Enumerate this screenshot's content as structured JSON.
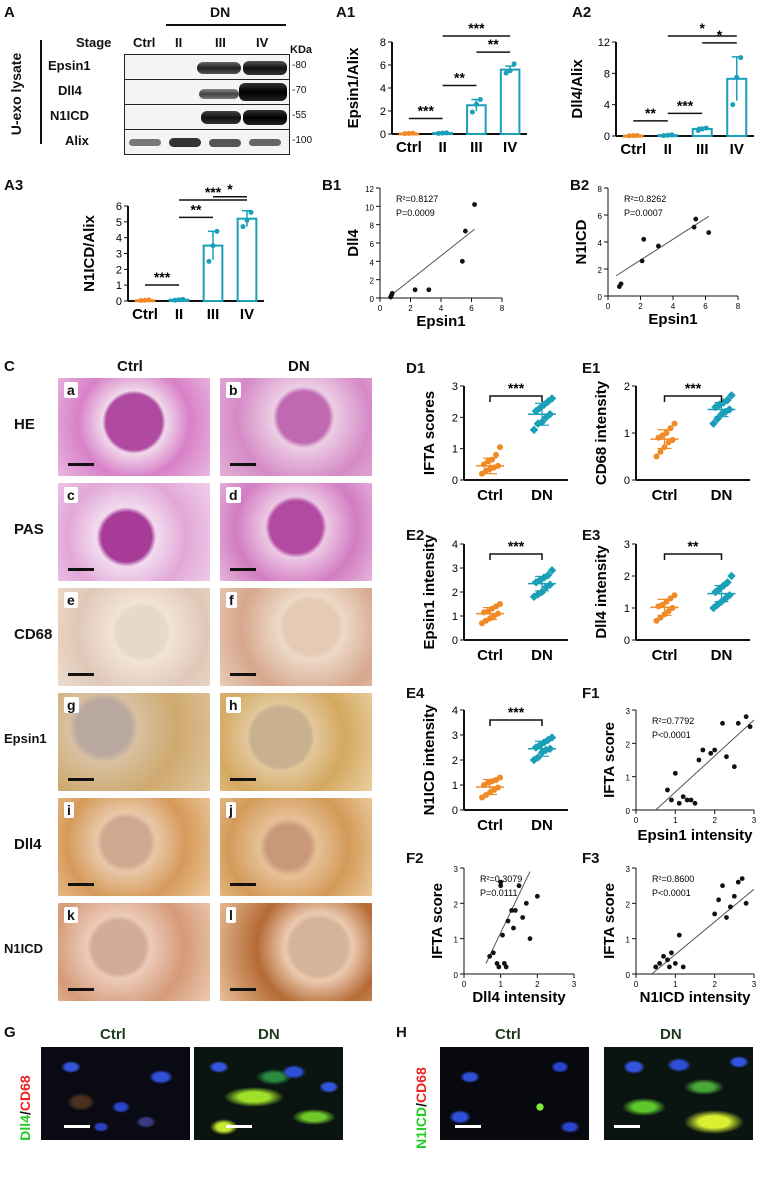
{
  "panels": {
    "A": "A",
    "A1": "A1",
    "A2": "A2",
    "A3": "A3",
    "B1": "B1",
    "B2": "B2",
    "C": "C",
    "D1": "D1",
    "E1": "E1",
    "E2": "E2",
    "E3": "E3",
    "E4": "E4",
    "F1": "F1",
    "F2": "F2",
    "F3": "F3",
    "G": "G",
    "H": "H"
  },
  "western_blot": {
    "side_label": "U-exo lysate",
    "dn_header": "DN",
    "stage_label": "Stage",
    "lanes": [
      "Ctrl",
      "II",
      "III",
      "IV"
    ],
    "kda_header": "KDa",
    "rows": [
      {
        "name": "Epsin1",
        "kda": "-80"
      },
      {
        "name": "Dll4",
        "kda": "-70"
      },
      {
        "name": "N1ICD",
        "kda": "-55"
      },
      {
        "name": "Alix",
        "kda": "-100"
      }
    ]
  },
  "ihc": {
    "col_headers": [
      "Ctrl",
      "DN"
    ],
    "rows": [
      {
        "label": "HE",
        "letters": [
          "a",
          "b"
        ]
      },
      {
        "label": "PAS",
        "letters": [
          "c",
          "d"
        ]
      },
      {
        "label": "CD68",
        "letters": [
          "e",
          "f"
        ]
      },
      {
        "label": "Epsin1",
        "letters": [
          "g",
          "h"
        ]
      },
      {
        "label": "Dll4",
        "letters": [
          "i",
          "j"
        ]
      },
      {
        "label": "N1ICD",
        "letters": [
          "k",
          "l"
        ]
      }
    ]
  },
  "immunofluorescence": {
    "G": {
      "col_headers": [
        "Ctrl",
        "DN"
      ],
      "stain_green": "Dll4",
      "stain_red": "CD68",
      "sep": "/"
    },
    "H": {
      "col_headers": [
        "Ctrl",
        "DN"
      ],
      "stain_green": "N1ICD",
      "stain_red": "CD68",
      "sep": "/"
    }
  },
  "colors": {
    "ctrl": "#f08a24",
    "dn": "#1a9fb8",
    "line": "#555555",
    "green": "#22cc22",
    "red": "#ee2222"
  },
  "chart_data": [
    {
      "id": "A1",
      "type": "bar",
      "categories": [
        "Ctrl",
        "II",
        "III",
        "IV"
      ],
      "values": [
        0.05,
        0.08,
        2.5,
        5.6
      ],
      "errors": [
        0.03,
        0.05,
        0.5,
        0.3
      ],
      "points": [
        [
          0.03,
          0.05,
          0.07
        ],
        [
          0.05,
          0.08,
          0.1
        ],
        [
          1.9,
          2.6,
          3.0
        ],
        [
          5.3,
          5.5,
          6.1
        ]
      ],
      "ylabel": "Epsin1/Alix",
      "xlabel": "",
      "ylim": [
        0,
        8
      ],
      "yticks": [
        0,
        2,
        4,
        6,
        8
      ],
      "significance": [
        {
          "from": 0,
          "to": 1,
          "label": "***"
        },
        {
          "from": 1,
          "to": 2,
          "label": "**"
        },
        {
          "from": 2,
          "to": 3,
          "label": "**"
        },
        {
          "from": 1,
          "to": 3,
          "label": "***"
        }
      ]
    },
    {
      "id": "A2",
      "type": "bar",
      "categories": [
        "Ctrl",
        "II",
        "III",
        "IV"
      ],
      "values": [
        0.05,
        0.1,
        0.9,
        7.3
      ],
      "errors": [
        0.03,
        0.05,
        0.2,
        2.8
      ],
      "points": [
        [
          0.03,
          0.05,
          0.07
        ],
        [
          0.05,
          0.1,
          0.15
        ],
        [
          0.7,
          0.9,
          1.0
        ],
        [
          4.0,
          7.5,
          10.0
        ]
      ],
      "ylabel": "Dll4/Alix",
      "xlabel": "",
      "ylim": [
        0,
        12
      ],
      "yticks": [
        0,
        4,
        8,
        12
      ],
      "significance": [
        {
          "from": 0,
          "to": 1,
          "label": "**"
        },
        {
          "from": 1,
          "to": 2,
          "label": "***"
        },
        {
          "from": 2,
          "to": 3,
          "label": "*"
        },
        {
          "from": 1,
          "to": 3,
          "label": "*"
        }
      ]
    },
    {
      "id": "A3",
      "type": "bar",
      "categories": [
        "Ctrl",
        "II",
        "III",
        "IV"
      ],
      "values": [
        0.05,
        0.08,
        3.5,
        5.2
      ],
      "errors": [
        0.03,
        0.05,
        0.9,
        0.5
      ],
      "points": [
        [
          0.03,
          0.05,
          0.07
        ],
        [
          0.05,
          0.08,
          0.1
        ],
        [
          2.5,
          3.5,
          4.4
        ],
        [
          4.7,
          5.1,
          5.6
        ]
      ],
      "ylabel": "N1ICD/Alix",
      "xlabel": "",
      "ylim": [
        0,
        6
      ],
      "yticks": [
        0,
        1,
        2,
        3,
        4,
        5,
        6
      ],
      "significance": [
        {
          "from": 0,
          "to": 1,
          "label": "***"
        },
        {
          "from": 1,
          "to": 2,
          "label": "**"
        },
        {
          "from": 2,
          "to": 3,
          "label": "*"
        },
        {
          "from": 1,
          "to": 3,
          "label": "***"
        }
      ]
    },
    {
      "id": "B1",
      "type": "scatter",
      "x": [
        0.7,
        0.75,
        0.8,
        2.3,
        3.2,
        5.4,
        5.6,
        6.2
      ],
      "y": [
        0.1,
        0.3,
        0.5,
        0.9,
        0.9,
        4.0,
        7.3,
        10.2
      ],
      "fit": [
        [
          0.5,
          -0.5
        ],
        [
          6.2,
          7.5
        ]
      ],
      "xlabel": "Epsin1",
      "ylabel": "Dll4",
      "xlim": [
        0,
        8
      ],
      "ylim": [
        0,
        12
      ],
      "xticks": [
        0,
        2,
        4,
        6,
        8
      ],
      "yticks": [
        0,
        2,
        4,
        6,
        8,
        10,
        12
      ],
      "xticklabels": [
        "0",
        "2",
        "4",
        "6",
        "8"
      ],
      "annotation": [
        "R²=0.8127",
        "P=0.0009"
      ]
    },
    {
      "id": "B2",
      "type": "scatter",
      "x": [
        0.7,
        0.8,
        2.1,
        2.2,
        3.1,
        5.3,
        5.4,
        6.2
      ],
      "y": [
        0.7,
        0.9,
        2.6,
        4.2,
        3.7,
        5.1,
        5.7,
        4.7
      ],
      "fit": [
        [
          0.5,
          1.5
        ],
        [
          6.2,
          5.9
        ]
      ],
      "xlabel": "Epsin1",
      "ylabel": "N1ICD",
      "xlim": [
        0,
        8
      ],
      "ylim": [
        0,
        8
      ],
      "xticks": [
        0,
        2,
        4,
        6,
        8
      ],
      "yticks": [
        0,
        2,
        4,
        6,
        8
      ],
      "xticklabels": [
        "0",
        "2",
        "4",
        "6",
        "8"
      ],
      "annotation": [
        "R²=0.8262",
        "P=0.0007"
      ]
    },
    {
      "id": "D1",
      "type": "scatter",
      "categories": [
        "Ctrl",
        "DN"
      ],
      "groups": [
        [
          0.2,
          0.3,
          0.35,
          0.4,
          0.45,
          0.5,
          0.6,
          0.65,
          0.8,
          1.05
        ],
        [
          1.6,
          1.8,
          1.85,
          2.0,
          2.1,
          2.2,
          2.3,
          2.4,
          2.5,
          2.6
        ]
      ],
      "means": [
        0.45,
        2.1
      ],
      "sds": [
        0.25,
        0.35
      ],
      "ylabel": "IFTA scores",
      "ylim": [
        0,
        3
      ],
      "yticks": [
        0,
        1,
        2,
        3
      ],
      "significance": "***"
    },
    {
      "id": "E1",
      "type": "scatter",
      "categories": [
        "Ctrl",
        "DN"
      ],
      "groups": [
        [
          0.5,
          0.6,
          0.7,
          0.8,
          0.85,
          0.9,
          0.95,
          1.0,
          1.1,
          1.2
        ],
        [
          1.2,
          1.3,
          1.4,
          1.45,
          1.5,
          1.55,
          1.6,
          1.65,
          1.7,
          1.8
        ]
      ],
      "means": [
        0.87,
        1.5
      ],
      "sds": [
        0.2,
        0.15
      ],
      "ylabel": "CD68 intensity",
      "ylim": [
        0,
        2
      ],
      "yticks": [
        0,
        1,
        2
      ],
      "significance": "***"
    },
    {
      "id": "E2",
      "type": "scatter",
      "categories": [
        "Ctrl",
        "DN"
      ],
      "groups": [
        [
          0.7,
          0.8,
          0.9,
          1.0,
          1.1,
          1.15,
          1.2,
          1.3,
          1.4,
          1.5
        ],
        [
          1.8,
          1.9,
          2.0,
          2.2,
          2.3,
          2.4,
          2.5,
          2.6,
          2.7,
          2.9
        ]
      ],
      "means": [
        1.1,
        2.35
      ],
      "sds": [
        0.25,
        0.3
      ],
      "ylabel": "Epsin1 intensity",
      "ylim": [
        0,
        4
      ],
      "yticks": [
        0,
        1,
        2,
        3,
        4
      ],
      "significance": "***"
    },
    {
      "id": "E3",
      "type": "scatter",
      "categories": [
        "Ctrl",
        "DN"
      ],
      "groups": [
        [
          0.6,
          0.7,
          0.8,
          0.9,
          1.0,
          1.05,
          1.1,
          1.2,
          1.3,
          1.4
        ],
        [
          1.0,
          1.1,
          1.2,
          1.3,
          1.4,
          1.5,
          1.6,
          1.7,
          1.8,
          2.0
        ]
      ],
      "means": [
        1.02,
        1.45
      ],
      "sds": [
        0.25,
        0.25
      ],
      "ylabel": "Dll4 intensity",
      "ylim": [
        0,
        3
      ],
      "yticks": [
        0,
        1,
        2,
        3
      ],
      "significance": "**"
    },
    {
      "id": "E4",
      "type": "scatter",
      "categories": [
        "Ctrl",
        "DN"
      ],
      "groups": [
        [
          0.5,
          0.6,
          0.7,
          0.8,
          0.9,
          1.0,
          1.1,
          1.15,
          1.2,
          1.3
        ],
        [
          2.0,
          2.1,
          2.3,
          2.4,
          2.45,
          2.5,
          2.6,
          2.7,
          2.8,
          2.9
        ]
      ],
      "means": [
        0.92,
        2.45
      ],
      "sds": [
        0.3,
        0.3
      ],
      "ylabel": "N1ICD intensity",
      "ylim": [
        0,
        4
      ],
      "yticks": [
        0,
        1,
        2,
        3,
        4
      ],
      "significance": "***"
    },
    {
      "id": "F1",
      "type": "scatter",
      "x": [
        0.8,
        0.9,
        1.0,
        1.1,
        1.2,
        1.3,
        1.4,
        1.5,
        1.6,
        1.7,
        1.9,
        2.0,
        2.2,
        2.3,
        2.5,
        2.6,
        2.8,
        2.9
      ],
      "y": [
        0.6,
        0.3,
        1.1,
        0.2,
        0.4,
        0.3,
        0.3,
        0.2,
        1.5,
        1.8,
        1.7,
        1.8,
        2.6,
        1.6,
        1.3,
        2.6,
        2.8,
        2.5
      ],
      "fit": [
        [
          0.5,
          0.0
        ],
        [
          3.0,
          2.7
        ]
      ],
      "xlabel": "Epsin1 intensity",
      "ylabel": "IFTA score",
      "xlim": [
        0,
        3
      ],
      "ylim": [
        0,
        3
      ],
      "xticks": [
        0,
        1,
        2,
        3
      ],
      "yticks": [
        0,
        1,
        2,
        3
      ],
      "xticklabels": [
        "0",
        "1",
        "2",
        "3"
      ],
      "annotation": [
        "R²=0.7792",
        "P<0.0001"
      ]
    },
    {
      "id": "F2",
      "type": "scatter",
      "x": [
        0.7,
        0.8,
        0.9,
        0.95,
        1.0,
        1.0,
        1.05,
        1.1,
        1.15,
        1.2,
        1.3,
        1.35,
        1.4,
        1.5,
        1.6,
        1.7,
        1.8,
        2.0
      ],
      "y": [
        0.5,
        0.6,
        0.3,
        0.2,
        2.5,
        2.6,
        1.1,
        0.3,
        0.2,
        1.5,
        1.8,
        1.3,
        1.8,
        2.5,
        1.6,
        2.0,
        1.0,
        2.2
      ],
      "fit": [
        [
          0.6,
          0.3
        ],
        [
          1.8,
          2.9
        ]
      ],
      "xlabel": "Dll4 intensity",
      "ylabel": "IFTA score",
      "xlim": [
        0,
        3
      ],
      "ylim": [
        0,
        3
      ],
      "xticks": [
        0,
        1,
        2,
        3
      ],
      "yticks": [
        0,
        1,
        2,
        3
      ],
      "xticklabels": [
        "0",
        "1",
        "2",
        "3"
      ],
      "annotation": [
        "R²=0.3079",
        "P=0.0111"
      ]
    },
    {
      "id": "F3",
      "type": "scatter",
      "x": [
        0.5,
        0.6,
        0.7,
        0.8,
        0.85,
        0.9,
        1.0,
        1.1,
        1.2,
        2.0,
        2.1,
        2.2,
        2.3,
        2.4,
        2.5,
        2.6,
        2.7,
        2.8
      ],
      "y": [
        0.2,
        0.3,
        0.5,
        0.4,
        0.2,
        0.6,
        0.3,
        1.1,
        0.2,
        1.7,
        2.1,
        2.5,
        1.6,
        1.9,
        2.2,
        2.6,
        2.7,
        2.0
      ],
      "fit": [
        [
          0.4,
          0.0
        ],
        [
          3.0,
          2.4
        ]
      ],
      "xlabel": "N1ICD intensity",
      "ylabel": "IFTA score",
      "xlim": [
        0,
        3
      ],
      "ylim": [
        0,
        3
      ],
      "xticks": [
        0,
        1,
        2,
        3
      ],
      "yticks": [
        0,
        1,
        2,
        3
      ],
      "xticklabels": [
        "0",
        "1",
        "2",
        "3"
      ],
      "annotation": [
        "R²=0.8600",
        "P<0.0001"
      ]
    }
  ]
}
